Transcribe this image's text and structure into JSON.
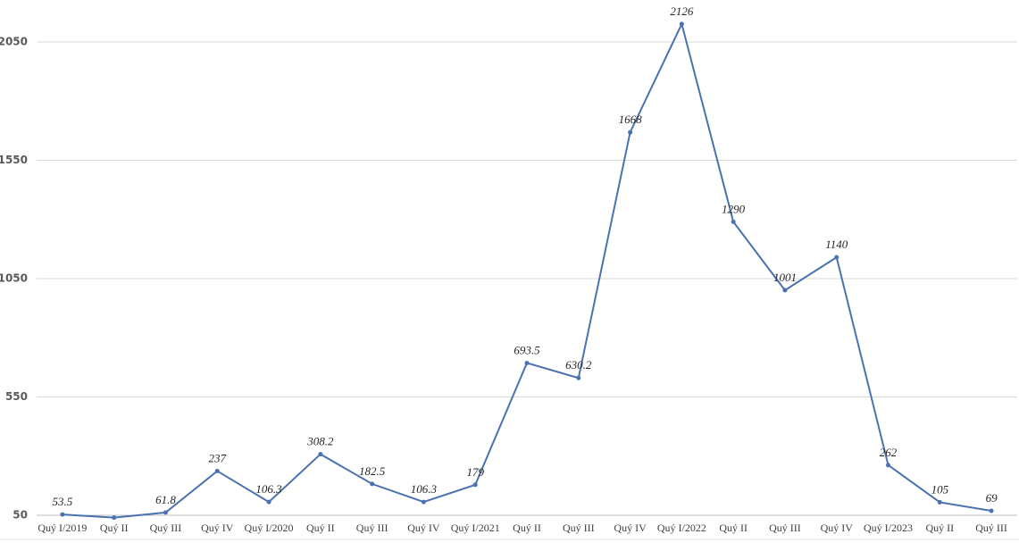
{
  "chart_data": {
    "type": "line",
    "categories": [
      "Quý I/2019",
      "Quý II",
      "Quý III",
      "Quý IV",
      "Quý I/2020",
      "Quý II",
      "Quý III",
      "Quý IV",
      "Quý I/2021",
      "Quý II",
      "Quý III",
      "Quý IV",
      "Quý I/2022",
      "Quý II",
      "Quý III",
      "Quý IV",
      "Quý I/2023",
      "Quý II",
      "Quý III"
    ],
    "series": [
      {
        "color": "#4a72b0",
        "values": [
          53.5,
          40,
          61.8,
          237,
          106.3,
          308.2,
          182.5,
          106.3,
          179,
          693.5,
          630.2,
          1668,
          2126,
          1290,
          1001,
          1140,
          262,
          105,
          69
        ],
        "value_labels": [
          "53.5",
          null,
          "61.8",
          "237",
          "106.3",
          "308.2",
          "182.5",
          "106.3",
          "179",
          "693.5",
          "630.2",
          "1668",
          "2126",
          "1290",
          "1001",
          "1140",
          "262",
          "105",
          "69"
        ]
      }
    ],
    "ylim": [
      50,
      2050
    ],
    "yticks": [
      50,
      550,
      1050,
      1550,
      2050
    ],
    "grid": true
  }
}
